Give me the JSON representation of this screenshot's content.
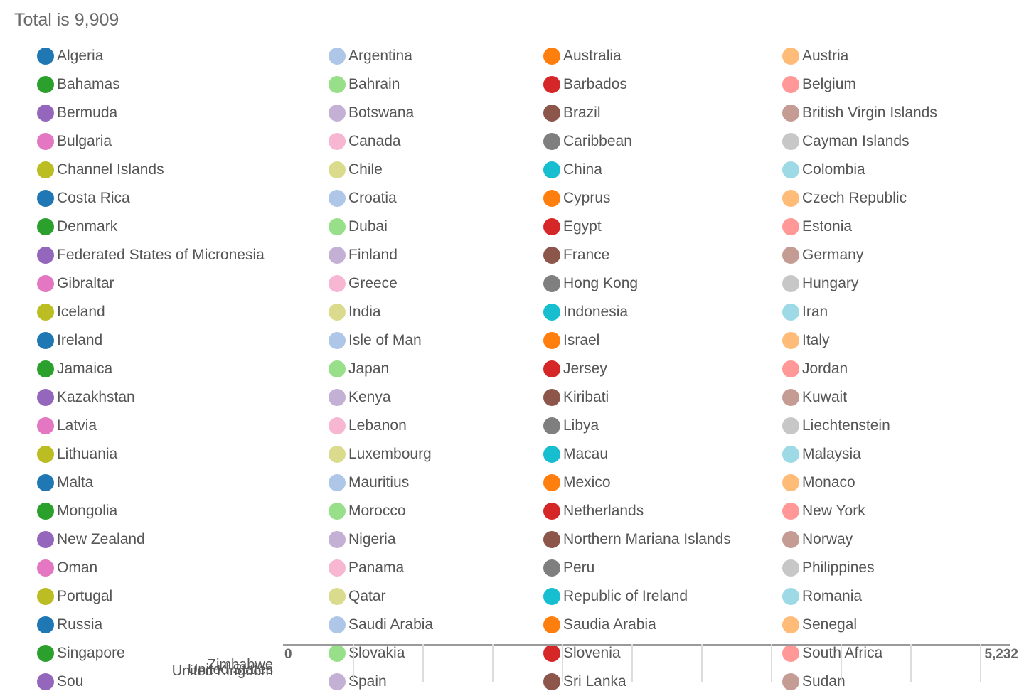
{
  "header": {
    "total_text": "Total is 9,909"
  },
  "axis": {
    "min_label": "0",
    "max_label": "5,232"
  },
  "chart_data": {
    "type": "bar",
    "title": "Total is 9,909",
    "total": 9909,
    "xlim": [
      0,
      5232
    ],
    "grid": true,
    "legend_placement": "top",
    "categories": [
      "Algeria",
      "Argentina",
      "Australia",
      "Austria",
      "Bahamas",
      "Bahrain",
      "Barbados",
      "Belgium",
      "Bermuda",
      "Botswana",
      "Brazil",
      "British Virgin Islands",
      "Bulgaria",
      "Canada",
      "Caribbean",
      "Cayman Islands",
      "Channel Islands",
      "Chile",
      "China",
      "Colombia",
      "Costa Rica",
      "Croatia",
      "Cyprus",
      "Czech Republic",
      "Denmark",
      "Dubai",
      "Egypt",
      "Estonia",
      "Federated States of Micronesia",
      "Finland",
      "France",
      "Germany",
      "Gibraltar",
      "Greece",
      "Hong Kong",
      "Hungary",
      "Iceland",
      "India",
      "Indonesia",
      "Iran",
      "Ireland",
      "Isle of Man",
      "Israel",
      "Italy",
      "Jamaica",
      "Japan",
      "Jersey",
      "Jordan",
      "Kazakhstan",
      "Kenya",
      "Kiribati",
      "Kuwait",
      "Latvia",
      "Lebanon",
      "Libya",
      "Liechtenstein",
      "Lithuania",
      "Luxembourg",
      "Macau",
      "Malaysia",
      "Malta",
      "Mauritius",
      "Mexico",
      "Monaco",
      "Mongolia",
      "Morocco",
      "Netherlands",
      "New York",
      "New Zealand",
      "Nigeria",
      "Northern Mariana Islands",
      "Norway",
      "Oman",
      "Panama",
      "Peru",
      "Philippines",
      "Portugal",
      "Qatar",
      "Republic of Ireland",
      "Romania",
      "Russia",
      "Saudi Arabia",
      "Saudia Arabia",
      "Senegal",
      "Singapore",
      "Slovakia",
      "Slovenia",
      "South Africa",
      "Sou",
      "Spain",
      "Sri Lanka",
      "Sudan"
    ],
    "palette": [
      "#1f77b4",
      "#aec7e8",
      "#ff7f0e",
      "#ffbb78",
      "#2ca02c",
      "#98df8a",
      "#d62728",
      "#ff9896",
      "#9467bd",
      "#c5b0d5",
      "#8c564b",
      "#c49c94",
      "#e377c2",
      "#f7b6d2",
      "#7f7f7f",
      "#c7c7c7",
      "#bcbd22",
      "#dbdb8d",
      "#17becf",
      "#9edae5"
    ],
    "visible_row_labels": [
      "Zimbabwe",
      "United States",
      "United Kingdom"
    ]
  }
}
